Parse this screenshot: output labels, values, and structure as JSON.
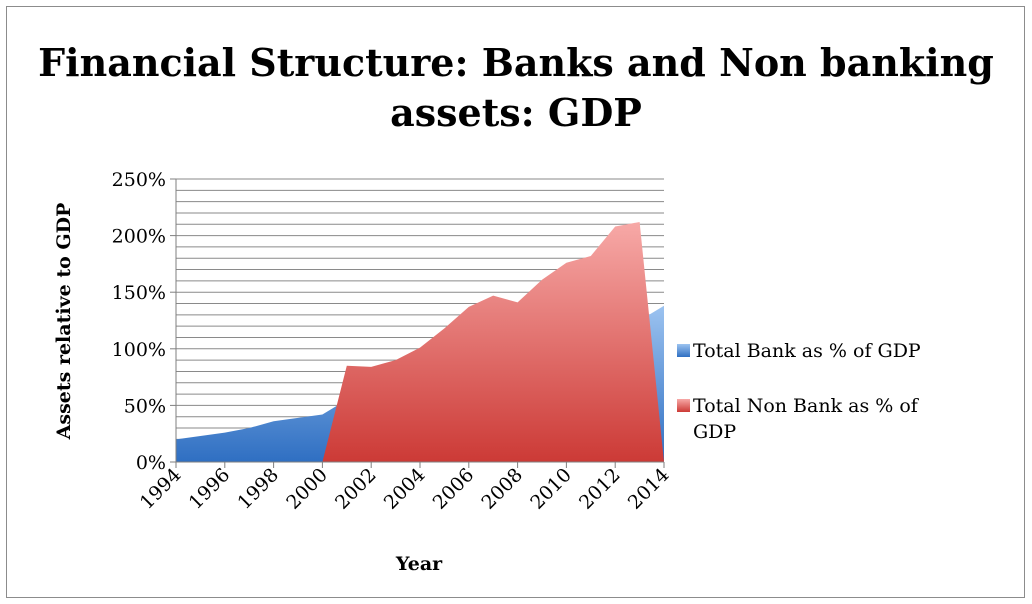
{
  "chart_data": {
    "type": "area",
    "title": "Financial Structure: Banks and Non banking assets: GDP",
    "xlabel": "Year",
    "ylabel": "Assets relative to GDP",
    "x": [
      1994,
      1995,
      1996,
      1997,
      1998,
      1999,
      2000,
      2001,
      2002,
      2003,
      2004,
      2005,
      2006,
      2007,
      2008,
      2009,
      2010,
      2011,
      2012,
      2013,
      2014
    ],
    "x_tick_labels": [
      "1994",
      "1996",
      "1998",
      "2000",
      "2002",
      "2004",
      "2006",
      "2008",
      "2010",
      "2012",
      "2014"
    ],
    "y_tick_labels": [
      "0%",
      "50%",
      "100%",
      "150%",
      "200%",
      "250%"
    ],
    "ylim": [
      0,
      2.5
    ],
    "y_major_step": 0.5,
    "y_minor_step": 0.1,
    "grid": true,
    "legend_position": "right",
    "series": [
      {
        "name": "Total Bank as % of GDP",
        "color": "#4f81bd",
        "values": [
          0.2,
          0.23,
          0.26,
          0.3,
          0.36,
          0.39,
          0.42,
          0.55,
          0.58,
          0.63,
          0.7,
          0.78,
          0.86,
          0.92,
          0.96,
          1.05,
          1.1,
          1.14,
          1.18,
          1.25,
          1.38
        ]
      },
      {
        "name": "Total Non Bank as % of GDP",
        "color": "#c0504d",
        "values": [
          0,
          0,
          0,
          0,
          0,
          0,
          0,
          0.85,
          0.84,
          0.9,
          1.01,
          1.18,
          1.37,
          1.47,
          1.41,
          1.61,
          1.76,
          1.82,
          2.08,
          2.12,
          0
        ]
      }
    ]
  }
}
